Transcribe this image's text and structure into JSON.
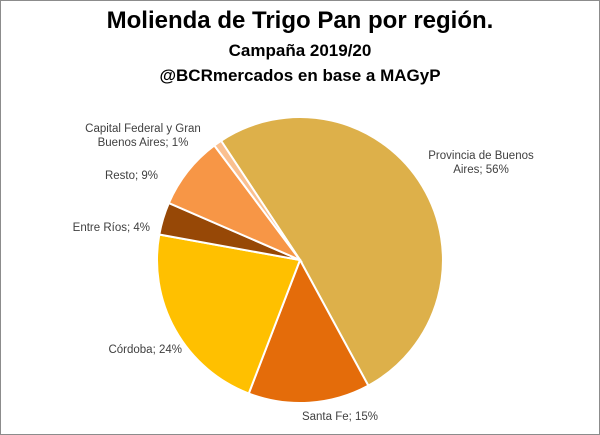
{
  "chart_data": {
    "type": "pie",
    "title": "Molienda de Trigo Pan por región.",
    "subtitle": "Campaña 2019/20",
    "subtitle2": "@BCRmercados en base a MAGyP",
    "slices": [
      {
        "name": "Provincia de Buenos Aires",
        "value": 56,
        "label_line1": "Provincia de Buenos",
        "label_line2": "Aires; 56%",
        "color": "#DDB04A"
      },
      {
        "name": "Santa Fe",
        "value": 15,
        "label_line1": "Santa Fe; 15%",
        "label_line2": "",
        "color": "#E46C0A"
      },
      {
        "name": "Córdoba",
        "value": 24,
        "label_line1": "Córdoba; 24%",
        "label_line2": "",
        "color": "#FFC000"
      },
      {
        "name": "Entre Ríos",
        "value": 4,
        "label_line1": "Entre Ríos; 4%",
        "label_line2": "",
        "color": "#974806"
      },
      {
        "name": "Resto",
        "value": 9,
        "label_line1": "Resto; 9%",
        "label_line2": "",
        "color": "#F79646"
      },
      {
        "name": "Capital Federal y Gran Buenos Aires",
        "value": 1,
        "label_line1": "Capital Federal y Gran",
        "label_line2": "Buenos Aires; 1%",
        "color": "#FAC090"
      }
    ]
  }
}
